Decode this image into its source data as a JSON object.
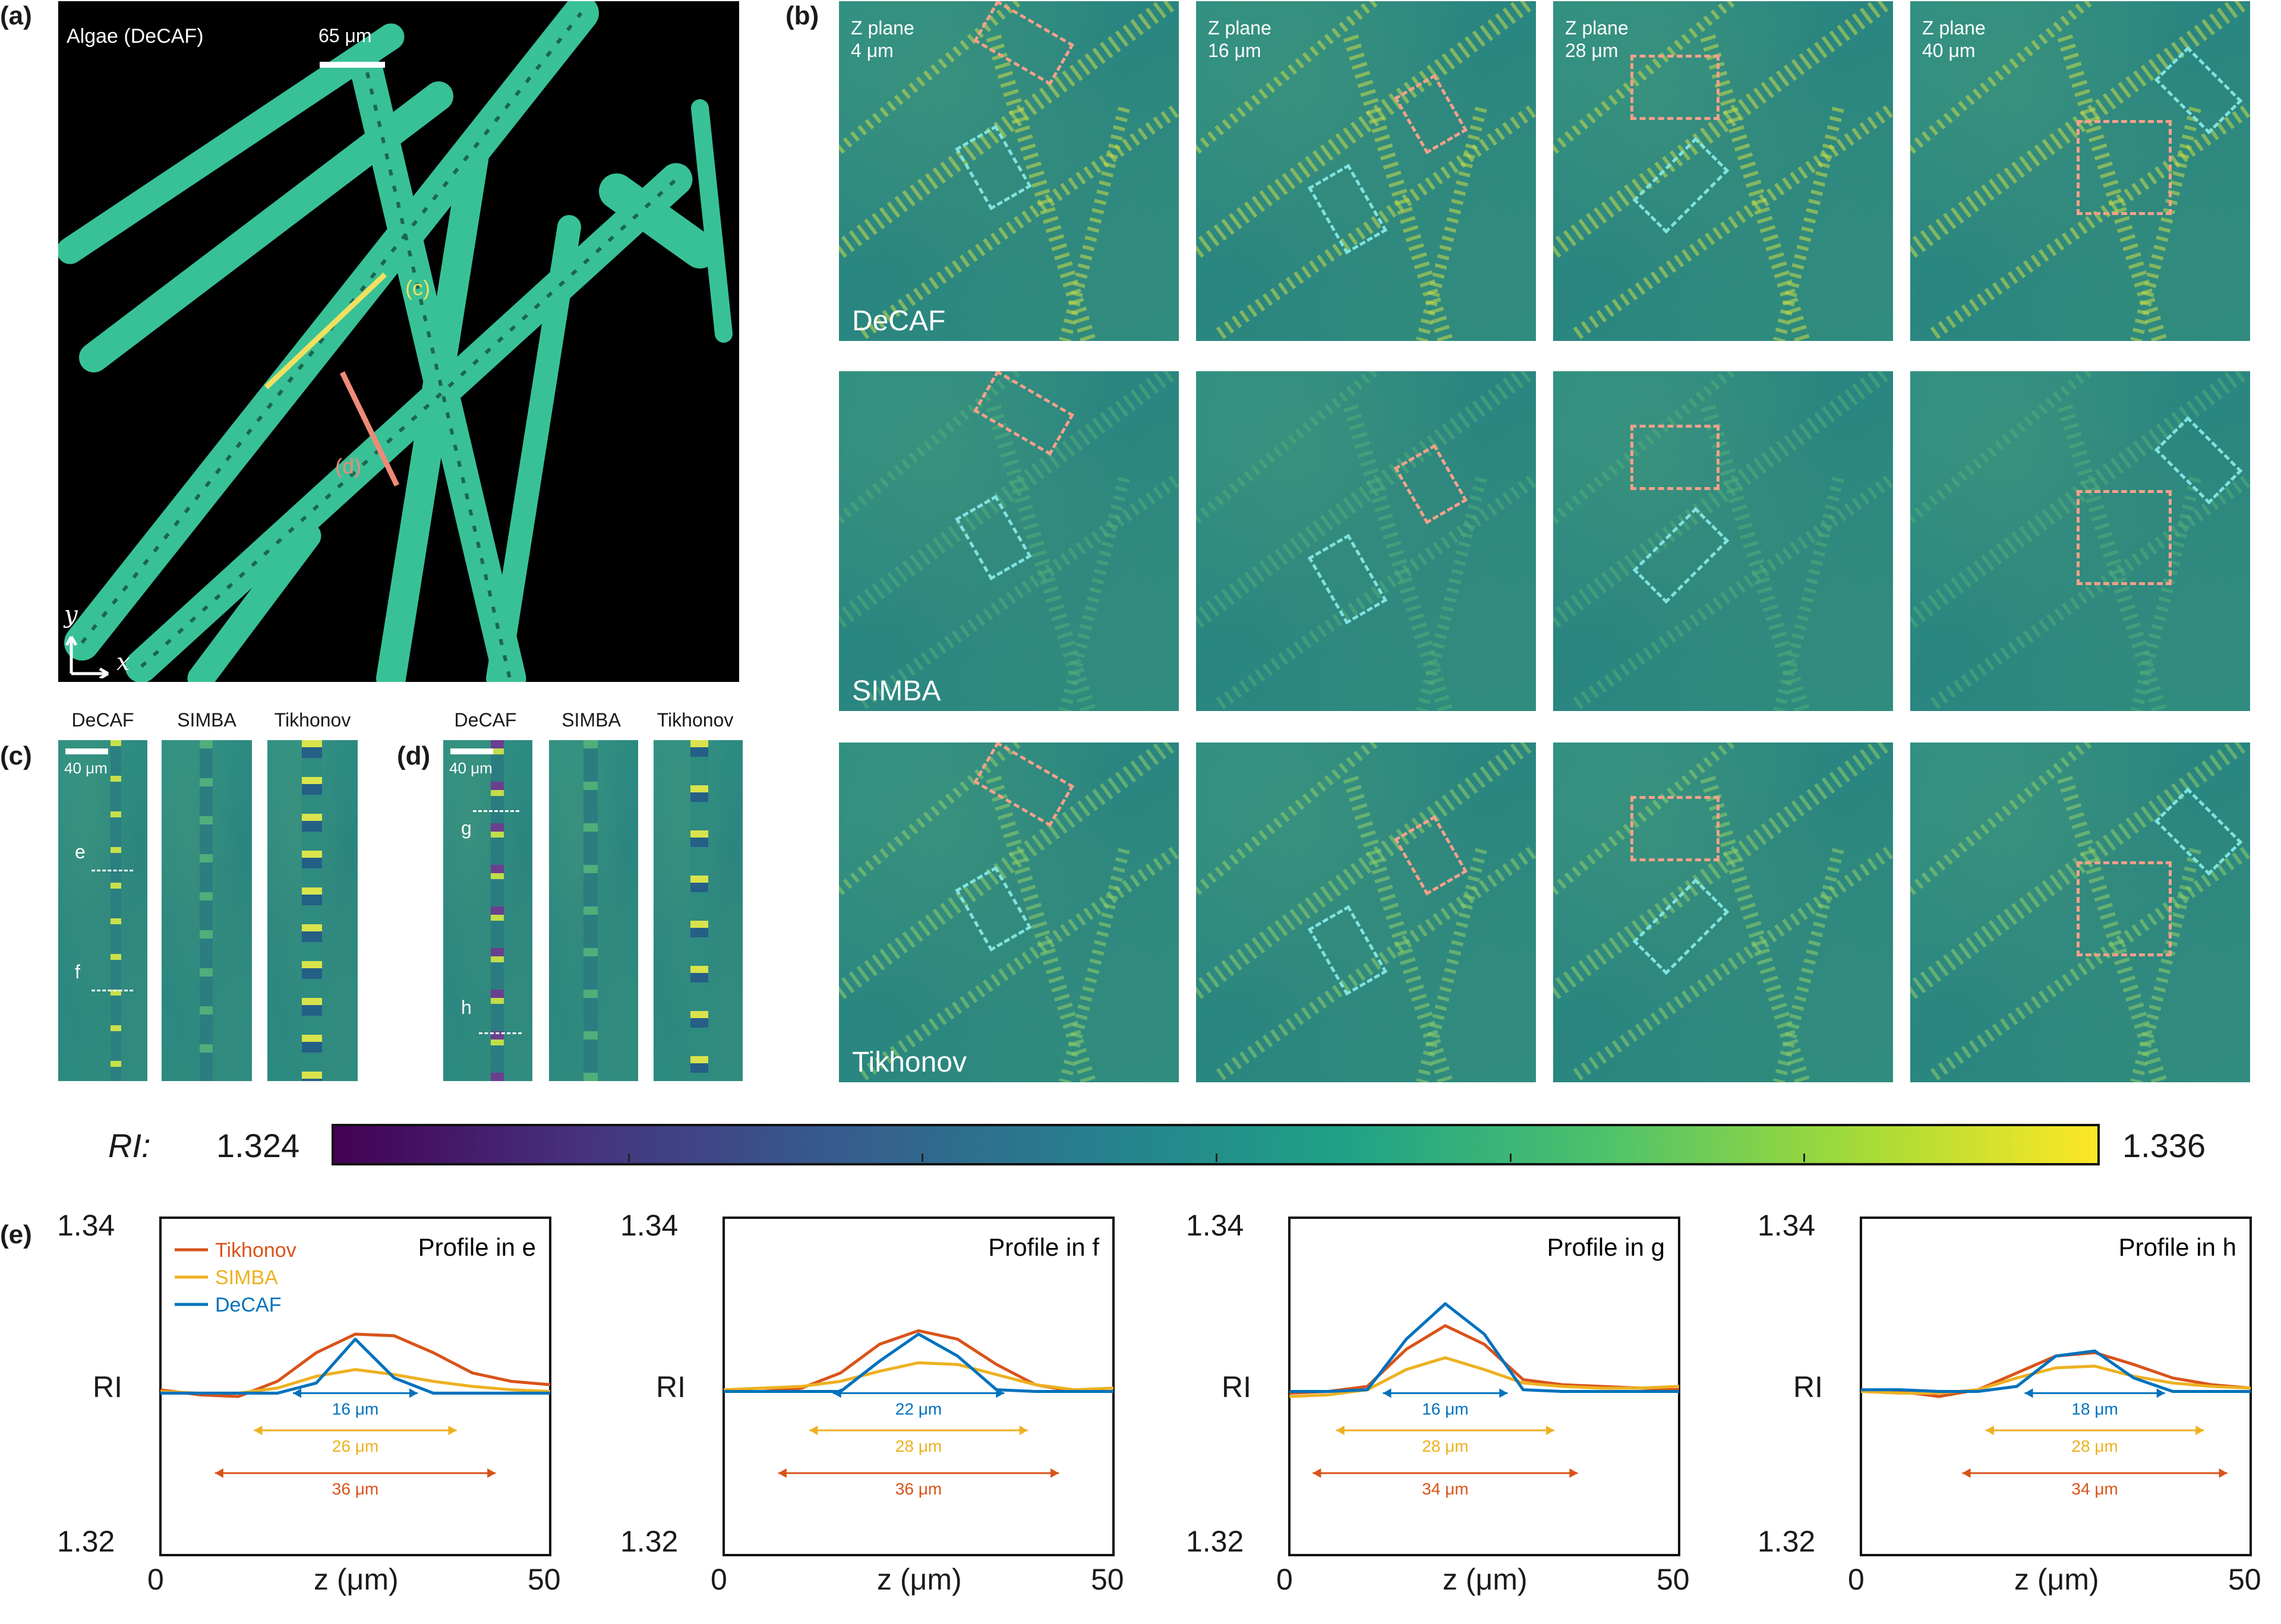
{
  "panel_labels": {
    "a": "(a)",
    "b": "(b)",
    "c": "(c)",
    "d": "(d)",
    "e": "(e)"
  },
  "panel_a": {
    "title": "Algae (DeCAF)",
    "scale": "65 μm",
    "line_c": "(c)",
    "line_d": "(d)",
    "axis_y": "y",
    "axis_x": "x"
  },
  "panel_b": {
    "planes": [
      {
        "l1": "Z plane",
        "l2": "4 μm"
      },
      {
        "l1": "Z plane",
        "l2": "16 μm"
      },
      {
        "l1": "Z plane",
        "l2": "28 μm"
      },
      {
        "l1": "Z plane",
        "l2": "40 μm"
      }
    ],
    "rows": [
      "DeCAF",
      "SIMBA",
      "Tikhonov"
    ]
  },
  "panel_c": {
    "headers": [
      "DeCAF",
      "SIMBA",
      "Tikhonov"
    ],
    "scale": "40 μm",
    "marks": [
      "e",
      "f"
    ]
  },
  "panel_d": {
    "headers": [
      "DeCAF",
      "SIMBA",
      "Tikhonov"
    ],
    "scale": "40 μm",
    "marks": [
      "g",
      "h"
    ]
  },
  "colorbar": {
    "label": "RI:",
    "min": "1.324",
    "max": "1.336"
  },
  "colors": {
    "tikhonov": "#d95319",
    "simba": "#edb120",
    "decaf": "#0072bd",
    "pink": "#f4a08a",
    "cyan": "#7fe3e0"
  },
  "chart_data": [
    {
      "type": "line",
      "title": "Profile in e",
      "xlabel": "z (μm)",
      "ylabel": "RI",
      "xlim": [
        0,
        50
      ],
      "ylim": [
        1.32,
        1.34
      ],
      "x": [
        0,
        5,
        10,
        15,
        20,
        25,
        30,
        35,
        40,
        45,
        50
      ],
      "series": [
        {
          "name": "Tikhonov",
          "values": [
            1.3298,
            1.3295,
            1.3294,
            1.3303,
            1.332,
            1.3331,
            1.333,
            1.332,
            1.3308,
            1.3303,
            1.3301
          ]
        },
        {
          "name": "SIMBA",
          "values": [
            1.3297,
            1.3296,
            1.3296,
            1.3299,
            1.3306,
            1.331,
            1.3307,
            1.3303,
            1.33,
            1.3298,
            1.3297
          ]
        },
        {
          "name": "DeCAF",
          "values": [
            1.3296,
            1.3296,
            1.3296,
            1.3296,
            1.3302,
            1.3328,
            1.3305,
            1.3296,
            1.3296,
            1.3296,
            1.3296
          ]
        }
      ],
      "annotations": [
        "16 μm",
        "26 μm",
        "36 μm"
      ]
    },
    {
      "type": "line",
      "title": "Profile in f",
      "xlabel": "z (μm)",
      "ylabel": "RI",
      "xlim": [
        0,
        50
      ],
      "ylim": [
        1.32,
        1.34
      ],
      "x": [
        0,
        5,
        10,
        15,
        20,
        25,
        30,
        35,
        40,
        45,
        50
      ],
      "series": [
        {
          "name": "Tikhonov",
          "values": [
            1.3297,
            1.3297,
            1.3299,
            1.3308,
            1.3325,
            1.3333,
            1.3328,
            1.3313,
            1.3301,
            1.3297,
            1.3297
          ]
        },
        {
          "name": "SIMBA",
          "values": [
            1.3298,
            1.3299,
            1.33,
            1.3303,
            1.3309,
            1.3314,
            1.3313,
            1.3307,
            1.3301,
            1.3298,
            1.3299
          ]
        },
        {
          "name": "DeCAF",
          "values": [
            1.3297,
            1.3297,
            1.3297,
            1.3297,
            1.3315,
            1.3331,
            1.3318,
            1.3298,
            1.3297,
            1.3297,
            1.3297
          ]
        }
      ],
      "annotations": [
        "22 μm",
        "28 μm",
        "36 μm"
      ]
    },
    {
      "type": "line",
      "title": "Profile in g",
      "xlabel": "z (μm)",
      "ylabel": "RI",
      "xlim": [
        0,
        50
      ],
      "ylim": [
        1.32,
        1.34
      ],
      "x": [
        0,
        5,
        10,
        15,
        20,
        25,
        30,
        35,
        40,
        45,
        50
      ],
      "series": [
        {
          "name": "Tikhonov",
          "values": [
            1.3296,
            1.3297,
            1.33,
            1.3322,
            1.3336,
            1.3325,
            1.3304,
            1.3301,
            1.33,
            1.3299,
            1.3298
          ]
        },
        {
          "name": "SIMBA",
          "values": [
            1.3294,
            1.3295,
            1.3298,
            1.331,
            1.3317,
            1.331,
            1.3302,
            1.33,
            1.3299,
            1.3299,
            1.33
          ]
        },
        {
          "name": "DeCAF",
          "values": [
            1.3297,
            1.3297,
            1.3298,
            1.3328,
            1.3349,
            1.3331,
            1.3298,
            1.3297,
            1.3297,
            1.3297,
            1.3297
          ]
        }
      ],
      "annotations": [
        "16 μm",
        "28 μm",
        "34 μm"
      ]
    },
    {
      "type": "line",
      "title": "Profile in h",
      "xlabel": "z (μm)",
      "ylabel": "RI",
      "xlim": [
        0,
        50
      ],
      "ylim": [
        1.32,
        1.34
      ],
      "x": [
        0,
        5,
        10,
        15,
        20,
        25,
        30,
        35,
        40,
        45,
        50
      ],
      "series": [
        {
          "name": "Tikhonov",
          "values": [
            1.3298,
            1.3297,
            1.3294,
            1.3298,
            1.3308,
            1.3318,
            1.332,
            1.3313,
            1.3305,
            1.3301,
            1.3299
          ]
        },
        {
          "name": "SIMBA",
          "values": [
            1.3297,
            1.3296,
            1.3296,
            1.3298,
            1.3305,
            1.3311,
            1.3312,
            1.3306,
            1.3302,
            1.33,
            1.3299
          ]
        },
        {
          "name": "DeCAF",
          "values": [
            1.3298,
            1.3298,
            1.3297,
            1.3297,
            1.33,
            1.3318,
            1.3321,
            1.3305,
            1.3297,
            1.3297,
            1.3297
          ]
        }
      ],
      "annotations": [
        "18 μm",
        "28 μm",
        "34 μm"
      ]
    }
  ]
}
